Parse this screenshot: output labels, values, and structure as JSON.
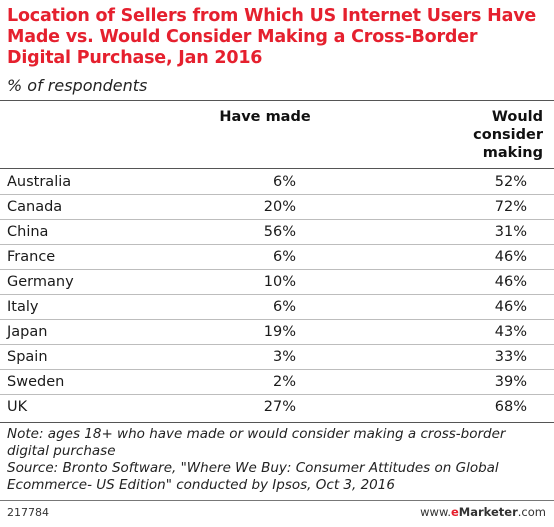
{
  "chart_data": {
    "type": "table",
    "title": "Location of Sellers from Which US Internet Users Have Made vs. Would Consider Making a Cross-Border Digital Purchase, Jan 2016",
    "subtitle": "% of respondents",
    "columns": [
      "",
      "Have made",
      "Would consider making"
    ],
    "rows": [
      {
        "country": "Australia",
        "have_made": "6%",
        "would_consider": "52%"
      },
      {
        "country": "Canada",
        "have_made": "20%",
        "would_consider": "72%"
      },
      {
        "country": "China",
        "have_made": "56%",
        "would_consider": "31%"
      },
      {
        "country": "France",
        "have_made": "6%",
        "would_consider": "46%"
      },
      {
        "country": "Germany",
        "have_made": "10%",
        "would_consider": "46%"
      },
      {
        "country": "Italy",
        "have_made": "6%",
        "would_consider": "46%"
      },
      {
        "country": "Japan",
        "have_made": "19%",
        "would_consider": "43%"
      },
      {
        "country": "Spain",
        "have_made": "3%",
        "would_consider": "33%"
      },
      {
        "country": "Sweden",
        "have_made": "2%",
        "would_consider": "39%"
      },
      {
        "country": "UK",
        "have_made": "27%",
        "would_consider": "68%"
      }
    ],
    "note": "Note: ages 18+ who have made or would consider making a cross-border digital purchase",
    "source": "Source: Bronto Software, \"Where We Buy: Consumer Attitudes on Global Ecommerce- US Edition\" conducted by Ipsos, Oct 3, 2016"
  },
  "footer": {
    "chart_id": "217784",
    "brand_prefix": "www.",
    "brand_e": "e",
    "brand_name": "Marketer",
    "brand_suffix": ".com"
  },
  "colors": {
    "title": "#e5202e",
    "rule": "#555555",
    "row_divider": "#bdbdbd"
  }
}
